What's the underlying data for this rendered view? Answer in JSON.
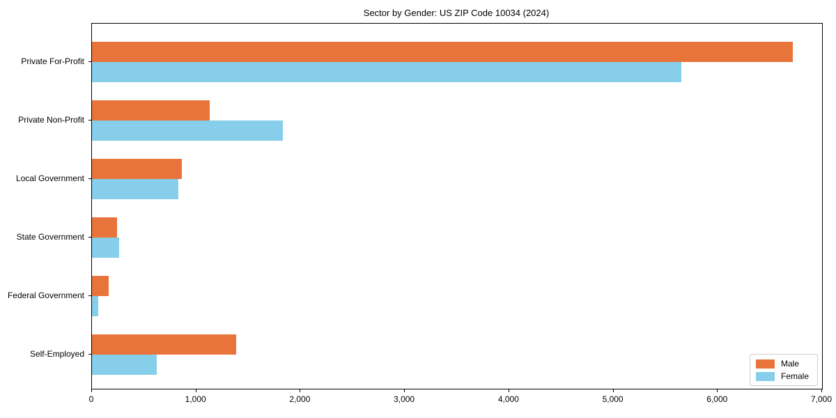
{
  "chart_data": {
    "type": "bar",
    "orientation": "horizontal",
    "title": "Sector by Gender: US ZIP Code 10034 (2024)",
    "categories": [
      "Private For-Profit",
      "Private Non-Profit",
      "Local Government",
      "State Government",
      "Federal Government",
      "Self-Employed"
    ],
    "series": [
      {
        "name": "Male",
        "color": "#e8743b",
        "values": [
          6720,
          1130,
          860,
          240,
          160,
          1380
        ]
      },
      {
        "name": "Female",
        "color": "#87ceeb",
        "values": [
          5650,
          1830,
          830,
          260,
          60,
          620
        ]
      }
    ],
    "xlabel": "",
    "ylabel": "",
    "xlim": [
      0,
      7000
    ],
    "xticks": [
      0,
      1000,
      2000,
      3000,
      4000,
      5000,
      6000,
      7000
    ],
    "xtick_labels": [
      "0",
      "1,000",
      "2,000",
      "3,000",
      "4,000",
      "5,000",
      "6,000",
      "7,000"
    ],
    "grid": false,
    "legend": {
      "position": "lower right"
    }
  }
}
